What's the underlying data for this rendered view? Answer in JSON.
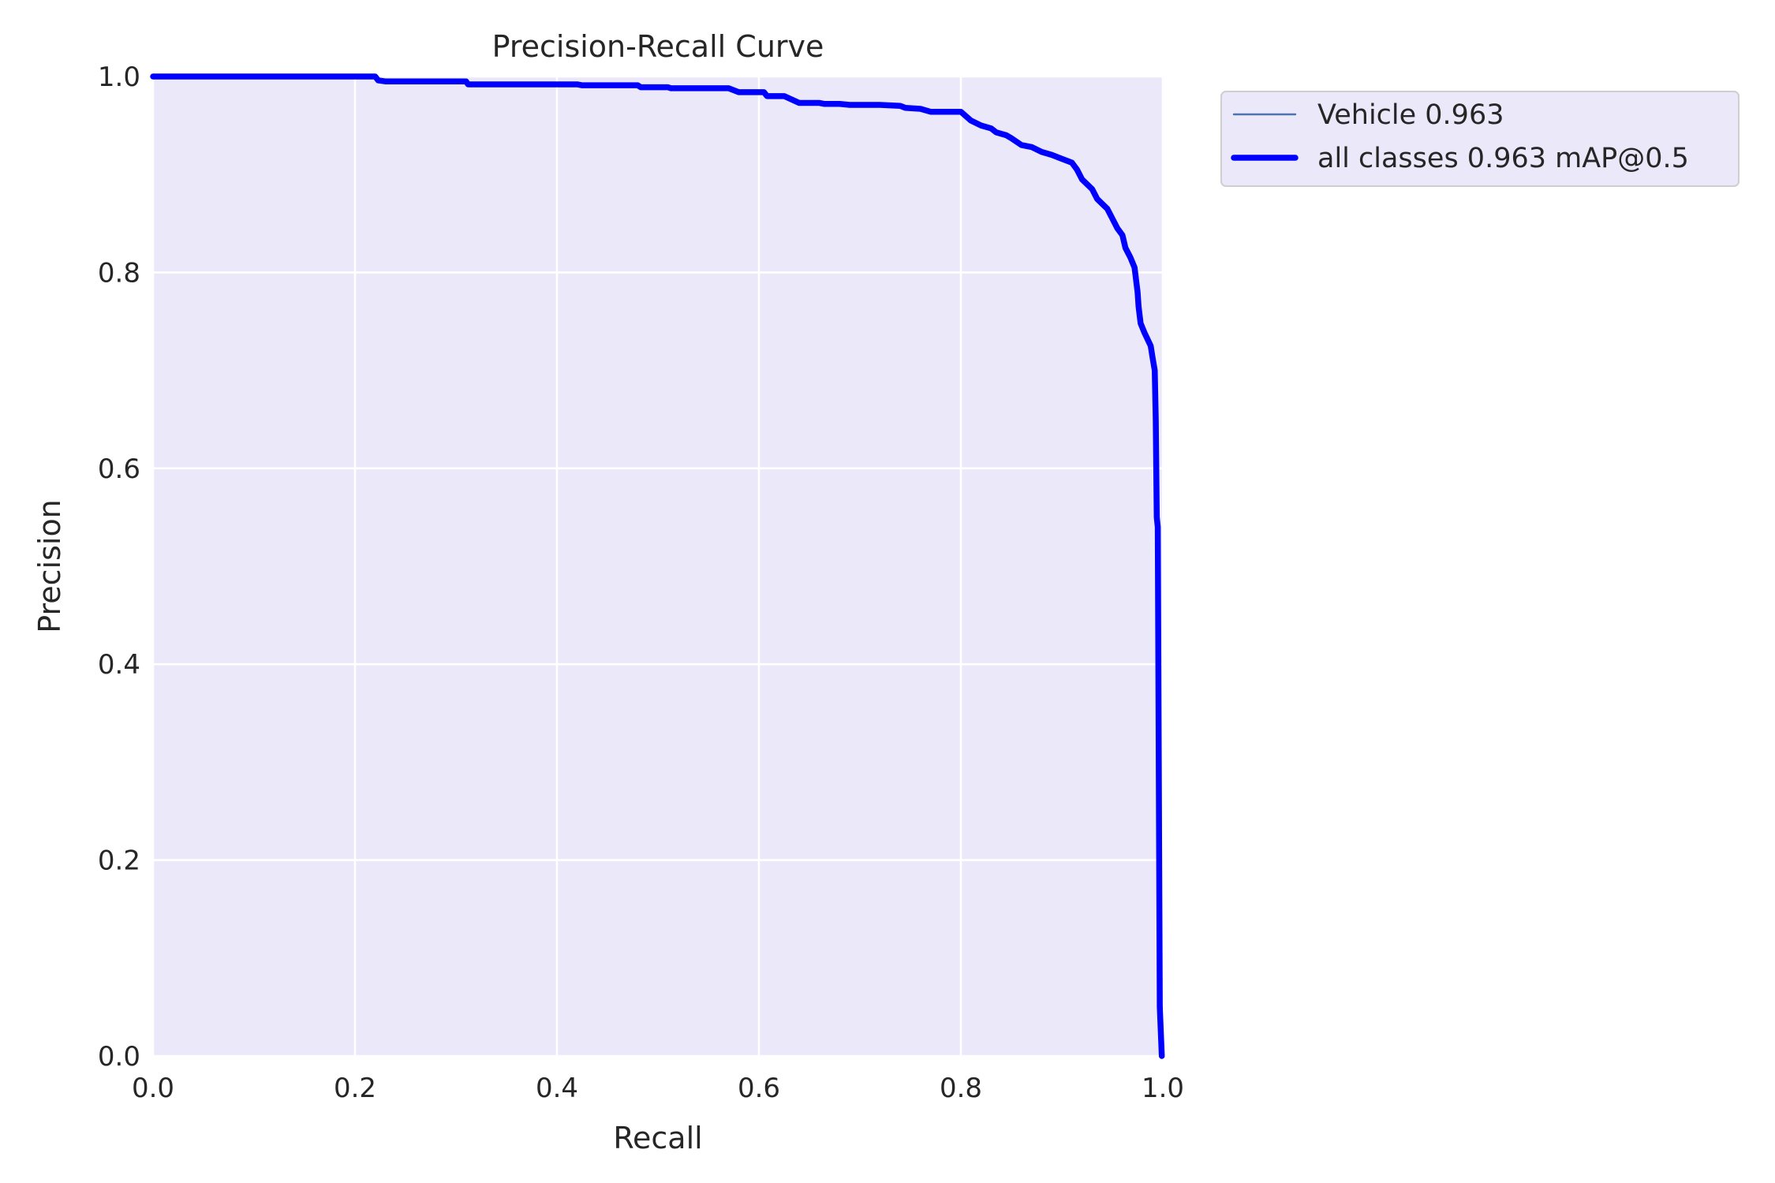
{
  "chart_data": {
    "type": "line",
    "title": "Precision-Recall Curve",
    "xlabel": "Recall",
    "ylabel": "Precision",
    "xlim": [
      0,
      1
    ],
    "ylim": [
      0,
      1
    ],
    "x_ticks": [
      "0.0",
      "0.2",
      "0.4",
      "0.6",
      "0.8",
      "1.0"
    ],
    "y_ticks": [
      "0.0",
      "0.2",
      "0.4",
      "0.6",
      "0.8",
      "1.0"
    ],
    "grid": true,
    "legend_position": "outside-top-right",
    "background_color": "#eae8f9",
    "series": [
      {
        "name": "Vehicle 0.963",
        "color": "#4c72b0",
        "line_width": "thin",
        "points": [
          [
            0.0,
            1.0
          ],
          [
            0.22,
            1.0
          ],
          [
            0.223,
            0.996
          ],
          [
            0.23,
            0.995
          ],
          [
            0.31,
            0.995
          ],
          [
            0.312,
            0.992
          ],
          [
            0.42,
            0.992
          ],
          [
            0.425,
            0.991
          ],
          [
            0.48,
            0.991
          ],
          [
            0.483,
            0.989
          ],
          [
            0.51,
            0.989
          ],
          [
            0.513,
            0.988
          ],
          [
            0.57,
            0.988
          ],
          [
            0.58,
            0.984
          ],
          [
            0.605,
            0.984
          ],
          [
            0.608,
            0.98
          ],
          [
            0.625,
            0.98
          ],
          [
            0.64,
            0.973
          ],
          [
            0.66,
            0.973
          ],
          [
            0.665,
            0.972
          ],
          [
            0.68,
            0.972
          ],
          [
            0.69,
            0.971
          ],
          [
            0.72,
            0.971
          ],
          [
            0.74,
            0.97
          ],
          [
            0.745,
            0.968
          ],
          [
            0.76,
            0.967
          ],
          [
            0.77,
            0.964
          ],
          [
            0.8,
            0.964
          ],
          [
            0.81,
            0.955
          ],
          [
            0.82,
            0.95
          ],
          [
            0.83,
            0.947
          ],
          [
            0.835,
            0.943
          ],
          [
            0.845,
            0.94
          ],
          [
            0.85,
            0.937
          ],
          [
            0.86,
            0.93
          ],
          [
            0.87,
            0.928
          ],
          [
            0.88,
            0.923
          ],
          [
            0.89,
            0.92
          ],
          [
            0.9,
            0.916
          ],
          [
            0.91,
            0.912
          ],
          [
            0.915,
            0.905
          ],
          [
            0.92,
            0.895
          ],
          [
            0.93,
            0.885
          ],
          [
            0.935,
            0.875
          ],
          [
            0.945,
            0.865
          ],
          [
            0.95,
            0.855
          ],
          [
            0.955,
            0.845
          ],
          [
            0.96,
            0.838
          ],
          [
            0.963,
            0.825
          ],
          [
            0.968,
            0.815
          ],
          [
            0.972,
            0.805
          ],
          [
            0.975,
            0.78
          ],
          [
            0.976,
            0.765
          ],
          [
            0.978,
            0.748
          ],
          [
            0.982,
            0.738
          ],
          [
            0.988,
            0.725
          ],
          [
            0.99,
            0.712
          ],
          [
            0.992,
            0.7
          ],
          [
            0.993,
            0.65
          ],
          [
            0.994,
            0.55
          ],
          [
            0.995,
            0.54
          ],
          [
            0.997,
            0.05
          ],
          [
            0.999,
            0.0
          ]
        ]
      },
      {
        "name": "all classes 0.963 mAP@0.5",
        "color": "#0000ff",
        "line_width": "thick",
        "points": [
          [
            0.0,
            1.0
          ],
          [
            0.22,
            1.0
          ],
          [
            0.223,
            0.996
          ],
          [
            0.23,
            0.995
          ],
          [
            0.31,
            0.995
          ],
          [
            0.312,
            0.992
          ],
          [
            0.42,
            0.992
          ],
          [
            0.425,
            0.991
          ],
          [
            0.48,
            0.991
          ],
          [
            0.483,
            0.989
          ],
          [
            0.51,
            0.989
          ],
          [
            0.513,
            0.988
          ],
          [
            0.57,
            0.988
          ],
          [
            0.58,
            0.984
          ],
          [
            0.605,
            0.984
          ],
          [
            0.608,
            0.98
          ],
          [
            0.625,
            0.98
          ],
          [
            0.64,
            0.973
          ],
          [
            0.66,
            0.973
          ],
          [
            0.665,
            0.972
          ],
          [
            0.68,
            0.972
          ],
          [
            0.69,
            0.971
          ],
          [
            0.72,
            0.971
          ],
          [
            0.74,
            0.97
          ],
          [
            0.745,
            0.968
          ],
          [
            0.76,
            0.967
          ],
          [
            0.77,
            0.964
          ],
          [
            0.8,
            0.964
          ],
          [
            0.81,
            0.955
          ],
          [
            0.82,
            0.95
          ],
          [
            0.83,
            0.947
          ],
          [
            0.835,
            0.943
          ],
          [
            0.845,
            0.94
          ],
          [
            0.85,
            0.937
          ],
          [
            0.86,
            0.93
          ],
          [
            0.87,
            0.928
          ],
          [
            0.88,
            0.923
          ],
          [
            0.89,
            0.92
          ],
          [
            0.9,
            0.916
          ],
          [
            0.91,
            0.912
          ],
          [
            0.915,
            0.905
          ],
          [
            0.92,
            0.895
          ],
          [
            0.93,
            0.885
          ],
          [
            0.935,
            0.875
          ],
          [
            0.945,
            0.865
          ],
          [
            0.95,
            0.855
          ],
          [
            0.955,
            0.845
          ],
          [
            0.96,
            0.838
          ],
          [
            0.963,
            0.825
          ],
          [
            0.968,
            0.815
          ],
          [
            0.972,
            0.805
          ],
          [
            0.975,
            0.78
          ],
          [
            0.976,
            0.765
          ],
          [
            0.978,
            0.748
          ],
          [
            0.982,
            0.738
          ],
          [
            0.988,
            0.725
          ],
          [
            0.99,
            0.712
          ],
          [
            0.992,
            0.7
          ],
          [
            0.993,
            0.65
          ],
          [
            0.994,
            0.55
          ],
          [
            0.995,
            0.54
          ],
          [
            0.997,
            0.05
          ],
          [
            0.999,
            0.0
          ]
        ]
      }
    ]
  }
}
